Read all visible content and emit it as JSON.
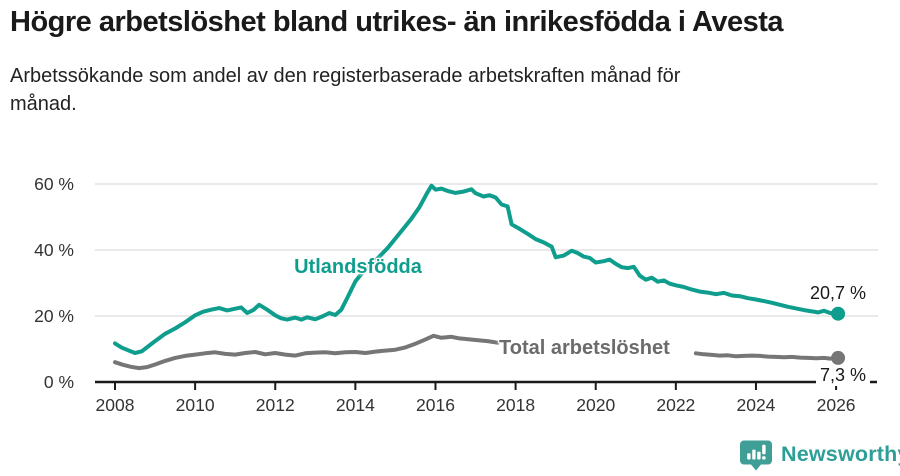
{
  "header": {
    "title": "Högre arbetslöshet bland utrikes- än inrikesfödda i Avesta",
    "subtitle": "Arbetssökande som andel av den registerbaserade arbetskraften månad för månad."
  },
  "chart_data": {
    "type": "line",
    "title": "Högre arbetslöshet bland utrikes- än inrikesfödda i Avesta",
    "subtitle": "Arbetssökande som andel av den registerbaserade arbetskraften månad för månad.",
    "unit": "%",
    "grid": true,
    "legend_position": "inline-labels",
    "xlim": [
      2007.5,
      2026.6
    ],
    "ylim": [
      0,
      62
    ],
    "colors": {
      "accent_teal": "#0f9e8e",
      "line_gray": "#767676",
      "label_gray": "#6b6b6b",
      "gridline": "#e2e2e2",
      "axis": "#1a1a1a"
    },
    "yticks": [
      {
        "v": 60,
        "label": "60 %"
      },
      {
        "v": 40,
        "label": "40 %"
      },
      {
        "v": 20,
        "label": "20 %"
      },
      {
        "v": 0,
        "label": "0 %"
      }
    ],
    "xticks": [
      {
        "v": 2008,
        "label": "2008"
      },
      {
        "v": 2010,
        "label": "2010"
      },
      {
        "v": 2012,
        "label": "2012"
      },
      {
        "v": 2014,
        "label": "2014"
      },
      {
        "v": 2016,
        "label": "2016"
      },
      {
        "v": 2018,
        "label": "2018"
      },
      {
        "v": 2020,
        "label": "2020"
      },
      {
        "v": 2022,
        "label": "2022"
      },
      {
        "v": 2024,
        "label": "2024"
      },
      {
        "v": 2026,
        "label": "2026"
      }
    ],
    "series": [
      {
        "name": "Utlandsfödda",
        "color": "#0f9e8e",
        "end_label": "20,7 %",
        "end_value": 20.7,
        "points": [
          [
            2008.0,
            11.7
          ],
          [
            2008.17,
            10.4
          ],
          [
            2008.33,
            9.6
          ],
          [
            2008.5,
            8.8
          ],
          [
            2008.67,
            9.3
          ],
          [
            2008.83,
            10.8
          ],
          [
            2009.0,
            12.4
          ],
          [
            2009.25,
            14.6
          ],
          [
            2009.5,
            16.2
          ],
          [
            2009.75,
            18.1
          ],
          [
            2010.0,
            20.2
          ],
          [
            2010.2,
            21.3
          ],
          [
            2010.4,
            21.9
          ],
          [
            2010.6,
            22.4
          ],
          [
            2010.8,
            21.7
          ],
          [
            2011.0,
            22.2
          ],
          [
            2011.15,
            22.6
          ],
          [
            2011.3,
            20.9
          ],
          [
            2011.45,
            21.8
          ],
          [
            2011.6,
            23.4
          ],
          [
            2011.8,
            21.9
          ],
          [
            2012.0,
            20.2
          ],
          [
            2012.15,
            19.3
          ],
          [
            2012.3,
            18.9
          ],
          [
            2012.5,
            19.5
          ],
          [
            2012.65,
            18.9
          ],
          [
            2012.8,
            19.6
          ],
          [
            2013.0,
            19.0
          ],
          [
            2013.2,
            20.0
          ],
          [
            2013.35,
            20.9
          ],
          [
            2013.5,
            20.3
          ],
          [
            2013.65,
            21.9
          ],
          [
            2013.8,
            25.5
          ],
          [
            2014.0,
            30.5
          ],
          [
            2014.2,
            33.5
          ],
          [
            2014.4,
            35.8
          ],
          [
            2014.6,
            38.0
          ],
          [
            2014.8,
            40.5
          ],
          [
            2015.0,
            43.5
          ],
          [
            2015.2,
            46.5
          ],
          [
            2015.4,
            49.5
          ],
          [
            2015.6,
            53.0
          ],
          [
            2015.8,
            57.5
          ],
          [
            2015.9,
            59.5
          ],
          [
            2016.0,
            58.3
          ],
          [
            2016.15,
            58.6
          ],
          [
            2016.3,
            57.9
          ],
          [
            2016.5,
            57.3
          ],
          [
            2016.7,
            57.7
          ],
          [
            2016.9,
            58.4
          ],
          [
            2017.0,
            57.2
          ],
          [
            2017.2,
            56.2
          ],
          [
            2017.35,
            56.6
          ],
          [
            2017.5,
            55.9
          ],
          [
            2017.65,
            53.8
          ],
          [
            2017.8,
            53.2
          ],
          [
            2017.9,
            47.8
          ],
          [
            2018.1,
            46.4
          ],
          [
            2018.3,
            44.9
          ],
          [
            2018.5,
            43.3
          ],
          [
            2018.7,
            42.3
          ],
          [
            2018.9,
            41.0
          ],
          [
            2019.0,
            37.8
          ],
          [
            2019.2,
            38.3
          ],
          [
            2019.4,
            39.8
          ],
          [
            2019.55,
            39.1
          ],
          [
            2019.7,
            38.0
          ],
          [
            2019.85,
            37.6
          ],
          [
            2020.0,
            36.2
          ],
          [
            2020.2,
            36.6
          ],
          [
            2020.35,
            37.1
          ],
          [
            2020.5,
            35.8
          ],
          [
            2020.65,
            34.8
          ],
          [
            2020.8,
            34.5
          ],
          [
            2020.95,
            34.9
          ],
          [
            2021.1,
            32.2
          ],
          [
            2021.25,
            31.0
          ],
          [
            2021.4,
            31.6
          ],
          [
            2021.55,
            30.4
          ],
          [
            2021.7,
            30.8
          ],
          [
            2021.85,
            29.8
          ],
          [
            2022.0,
            29.3
          ],
          [
            2022.2,
            28.8
          ],
          [
            2022.4,
            28.0
          ],
          [
            2022.6,
            27.4
          ],
          [
            2022.8,
            27.1
          ],
          [
            2023.0,
            26.6
          ],
          [
            2023.2,
            27.0
          ],
          [
            2023.4,
            26.2
          ],
          [
            2023.6,
            26.0
          ],
          [
            2023.8,
            25.4
          ],
          [
            2024.0,
            25.0
          ],
          [
            2024.2,
            24.5
          ],
          [
            2024.4,
            24.0
          ],
          [
            2024.6,
            23.4
          ],
          [
            2024.8,
            22.8
          ],
          [
            2025.0,
            22.3
          ],
          [
            2025.2,
            21.8
          ],
          [
            2025.4,
            21.4
          ],
          [
            2025.55,
            21.1
          ],
          [
            2025.7,
            21.6
          ],
          [
            2025.85,
            20.9
          ],
          [
            2026.05,
            20.7
          ]
        ]
      },
      {
        "name": "Total arbetslöshet",
        "color": "#767676",
        "end_label": "7,3 %",
        "end_value": 7.3,
        "points": [
          [
            2008.0,
            6.0
          ],
          [
            2008.2,
            5.2
          ],
          [
            2008.4,
            4.6
          ],
          [
            2008.6,
            4.2
          ],
          [
            2008.8,
            4.5
          ],
          [
            2009.0,
            5.3
          ],
          [
            2009.25,
            6.4
          ],
          [
            2009.5,
            7.3
          ],
          [
            2009.75,
            7.9
          ],
          [
            2010.0,
            8.3
          ],
          [
            2010.25,
            8.7
          ],
          [
            2010.5,
            9.0
          ],
          [
            2010.75,
            8.5
          ],
          [
            2011.0,
            8.3
          ],
          [
            2011.25,
            8.8
          ],
          [
            2011.5,
            9.1
          ],
          [
            2011.75,
            8.4
          ],
          [
            2012.0,
            8.8
          ],
          [
            2012.25,
            8.3
          ],
          [
            2012.5,
            8.0
          ],
          [
            2012.75,
            8.7
          ],
          [
            2013.0,
            8.9
          ],
          [
            2013.25,
            9.0
          ],
          [
            2013.5,
            8.7
          ],
          [
            2013.75,
            9.0
          ],
          [
            2014.0,
            9.1
          ],
          [
            2014.25,
            8.8
          ],
          [
            2014.5,
            9.2
          ],
          [
            2014.75,
            9.5
          ],
          [
            2015.0,
            9.8
          ],
          [
            2015.25,
            10.5
          ],
          [
            2015.5,
            11.6
          ],
          [
            2015.75,
            12.9
          ],
          [
            2015.95,
            14.0
          ],
          [
            2016.15,
            13.4
          ],
          [
            2016.4,
            13.7
          ],
          [
            2016.6,
            13.2
          ],
          [
            2016.85,
            12.9
          ],
          [
            2017.1,
            12.6
          ],
          [
            2017.3,
            12.4
          ],
          [
            2017.55,
            11.9
          ],
          null,
          [
            2022.5,
            8.7
          ],
          [
            2022.7,
            8.4
          ],
          [
            2022.9,
            8.2
          ],
          [
            2023.1,
            8.0
          ],
          [
            2023.3,
            8.1
          ],
          [
            2023.5,
            7.8
          ],
          [
            2023.7,
            7.9
          ],
          [
            2023.9,
            8.0
          ],
          [
            2024.1,
            7.9
          ],
          [
            2024.3,
            7.7
          ],
          [
            2024.5,
            7.6
          ],
          [
            2024.7,
            7.5
          ],
          [
            2024.9,
            7.6
          ],
          [
            2025.1,
            7.4
          ],
          [
            2025.3,
            7.3
          ],
          [
            2025.5,
            7.2
          ],
          [
            2025.7,
            7.3
          ],
          [
            2025.85,
            7.1
          ],
          [
            2026.05,
            7.3
          ]
        ]
      }
    ]
  },
  "footer": {
    "brand": "Newsworthy",
    "logo_color": "#3f9f96"
  }
}
